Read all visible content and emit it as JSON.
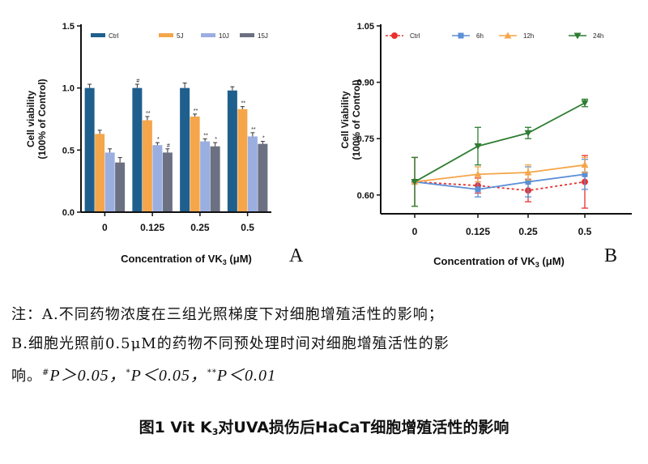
{
  "chart_data": [
    {
      "panel": "A",
      "type": "bar",
      "categories": [
        "0",
        "0.125",
        "0.25",
        "0.5"
      ],
      "series": [
        {
          "name": "Ctrl",
          "color": "#1f5f8e",
          "values": [
            1.0,
            1.0,
            1.0,
            0.98
          ],
          "errors": [
            0.03,
            0.03,
            0.04,
            0.03
          ]
        },
        {
          "name": "5J",
          "color": "#f5a64a",
          "values": [
            0.63,
            0.74,
            0.77,
            0.83
          ],
          "errors": [
            0.03,
            0.03,
            0.02,
            0.02
          ]
        },
        {
          "name": "10J",
          "color": "#9aaee0",
          "values": [
            0.48,
            0.54,
            0.57,
            0.61
          ],
          "errors": [
            0.03,
            0.02,
            0.02,
            0.03
          ]
        },
        {
          "name": "15J",
          "color": "#6b7082",
          "values": [
            0.4,
            0.48,
            0.53,
            0.55
          ],
          "errors": [
            0.04,
            0.03,
            0.03,
            0.02
          ]
        }
      ],
      "annotations": [
        [
          "",
          "#",
          "",
          ""
        ],
        [
          "",
          "**",
          "**",
          "**"
        ],
        [
          "",
          "*",
          "**",
          "**"
        ],
        [
          "",
          "#",
          "*",
          "*"
        ]
      ],
      "ylabel_line1": "Cell viability",
      "ylabel_line2": "(100% of Control)",
      "xlabel_text": "Concentration of  VK",
      "xlabel_sub": "3",
      "xlabel_unit": " (μM)",
      "yticks": [
        "0.0",
        "0.5",
        "1.0",
        "1.5"
      ],
      "ylim": [
        0,
        1.5
      ],
      "legend": "top"
    },
    {
      "panel": "B",
      "type": "line",
      "x": [
        "0",
        "0.125",
        "0.25",
        "0.5"
      ],
      "series": [
        {
          "name": "Ctrl",
          "color": "#e8312f",
          "marker": "circle",
          "dashed": true,
          "values": [
            0.635,
            0.625,
            0.612,
            0.635
          ],
          "errors": [
            0.065,
            0.02,
            0.03,
            0.07
          ]
        },
        {
          "name": "6h",
          "color": "#5b8fd6",
          "marker": "square",
          "dashed": false,
          "values": [
            0.635,
            0.615,
            0.635,
            0.655
          ],
          "errors": [
            0.065,
            0.02,
            0.04,
            0.04
          ]
        },
        {
          "name": "12h",
          "color": "#f5a64a",
          "marker": "triangle",
          "dashed": false,
          "values": [
            0.635,
            0.655,
            0.66,
            0.68
          ],
          "errors": [
            0.065,
            0.02,
            0.02,
            0.02
          ]
        },
        {
          "name": "24h",
          "color": "#2e7d32",
          "marker": "triangle-down",
          "dashed": false,
          "values": [
            0.635,
            0.73,
            0.765,
            0.845
          ],
          "errors": [
            0.065,
            0.05,
            0.015,
            0.01
          ]
        }
      ],
      "ylabel_line1": "Cell Viability",
      "ylabel_line2": "(100% of Control)",
      "xlabel_text": "Concentration of  VK",
      "xlabel_sub": "3",
      "xlabel_unit": " (μM)",
      "yticks": [
        "0.60",
        "0.75",
        "0.90",
        "1.05"
      ],
      "ylim": [
        0.55,
        1.05
      ],
      "legend": "top"
    }
  ],
  "panel_letters": {
    "a": "A",
    "b": "B"
  },
  "note": {
    "line1": "注：A.不同药物浓度在三组光照梯度下对细胞增殖活性的影响；",
    "line2": "B.细胞光照前0.5μM的药物不同预处理时间对细胞增殖活性的影",
    "line3_start": "响。",
    "sym_hash": "#",
    "p1": "P＞0.05，",
    "sym_star": "*",
    "p2": "P＜0.05，",
    "sym_2star": "**",
    "p3": "P＜0.01"
  },
  "caption": {
    "pre": "图1   Vit K",
    "sub": "3",
    "post": "对UVA损伤后HaCaT细胞增殖活性的影响"
  }
}
